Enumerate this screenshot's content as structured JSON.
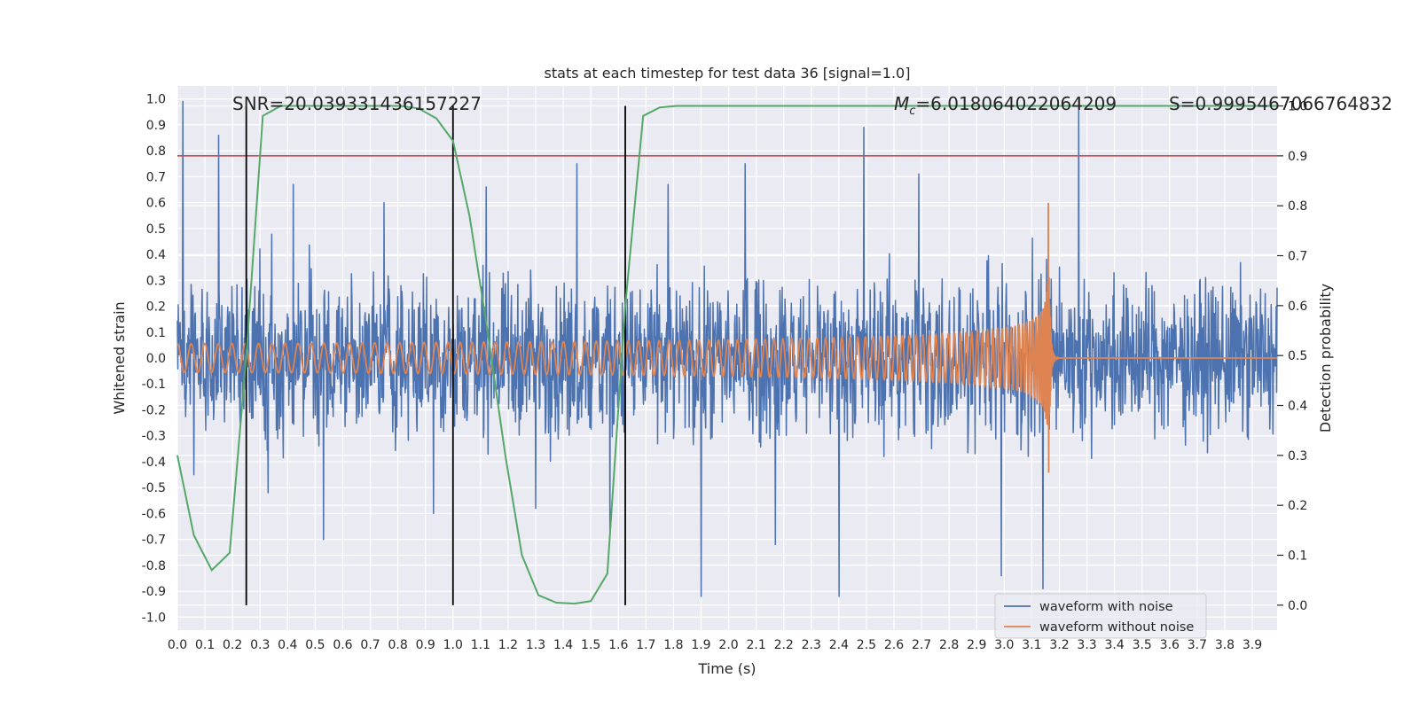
{
  "chart_data": {
    "type": "line",
    "title": "stats at each timestep for test data 36 [signal=1.0]",
    "xlabel": "Time (s)",
    "ylabel": "Whitened strain",
    "y2label": "Detection probability",
    "xlim": [
      0.0,
      3.99
    ],
    "ylim": [
      -1.05,
      1.05
    ],
    "y2lim": [
      -0.05,
      1.04
    ],
    "x_ticks": [
      0.0,
      0.1,
      0.2,
      0.3,
      0.4,
      0.5,
      0.6,
      0.7,
      0.8,
      0.9,
      1.0,
      1.1,
      1.2,
      1.3,
      1.4,
      1.5,
      1.6,
      1.7,
      1.8,
      1.9,
      2.0,
      2.1,
      2.2,
      2.3,
      2.4,
      2.5,
      2.6,
      2.7,
      2.8,
      2.9,
      3.0,
      3.1,
      3.2,
      3.3,
      3.4,
      3.5,
      3.6,
      3.7,
      3.8,
      3.9
    ],
    "x_tick_labels": [
      "0.0",
      "0.1",
      "0.2",
      "0.3",
      "0.4",
      "0.5",
      "0.6",
      "0.7",
      "0.8",
      "0.9",
      "1.0",
      "1.1",
      "1.2",
      "1.3",
      "1.4",
      "1.5",
      "1.6",
      "1.7",
      "1.8",
      "1.9",
      "2.0",
      "2.1",
      "2.2",
      "2.3",
      "2.4",
      "2.5",
      "2.6",
      "2.7",
      "2.8",
      "2.9",
      "3.0",
      "3.1",
      "3.2",
      "3.3",
      "3.4",
      "3.5",
      "3.6",
      "3.7",
      "3.8",
      "3.9"
    ],
    "y_ticks": [
      1.0,
      0.9,
      0.8,
      0.7,
      0.6,
      0.5,
      0.4,
      0.3,
      0.2,
      0.1,
      0.0,
      -0.1,
      -0.2,
      -0.3,
      -0.4,
      -0.5,
      -0.6,
      -0.7,
      -0.8,
      -0.9,
      -1.0
    ],
    "y_tick_labels": [
      "1.0",
      "0.9",
      "0.8",
      "0.7",
      "0.6",
      "0.5",
      "0.4",
      "0.3",
      "0.2",
      "0.1",
      "0.0",
      "-0.1",
      "-0.2",
      "-0.3",
      "-0.4",
      "-0.5",
      "-0.6",
      "-0.7",
      "-0.8",
      "-0.9",
      "-1.0"
    ],
    "y2_ticks": [
      1.0,
      0.9,
      0.8,
      0.7,
      0.6,
      0.5,
      0.4,
      0.3,
      0.2,
      0.1,
      0.0
    ],
    "y2_tick_labels": [
      "1.0",
      "0.9",
      "0.8",
      "0.7",
      "0.6",
      "0.5",
      "0.4",
      "0.3",
      "0.2",
      "0.1",
      "0.0"
    ],
    "grid": true,
    "legend_position": "bottom-right",
    "annotations": {
      "snr": "SNR=20.039331436157227",
      "mc_symbol": "M",
      "mc_subscript": "c",
      "mc_value": "=6.018064022064209",
      "s": "S=0.9995467066764832"
    },
    "threshold_y2": 0.9,
    "vertical_lines_x": [
      0.25,
      1.0,
      1.625
    ],
    "vertical_lines_y2_range": [
      0.0,
      1.0
    ],
    "series": [
      {
        "name": "waveform with noise",
        "color": "#4c72b0",
        "kind": "noise",
        "peak_x": [
          0.02,
          0.06,
          0.15,
          0.33,
          0.42,
          0.53,
          0.75,
          0.93,
          1.12,
          1.3,
          1.45,
          1.57,
          1.78,
          1.9,
          2.06,
          2.17,
          2.4,
          2.49,
          2.69,
          2.99,
          3.14,
          3.27
        ],
        "peak_y": [
          0.99,
          -0.45,
          0.86,
          -0.52,
          0.67,
          -0.7,
          0.6,
          -0.6,
          0.66,
          -0.58,
          0.75,
          -0.67,
          0.67,
          -0.92,
          0.75,
          -0.72,
          -0.92,
          0.89,
          0.71,
          -0.84,
          -0.89,
          1.0
        ]
      },
      {
        "name": "waveform without noise",
        "color": "#dd8452",
        "kind": "chirp",
        "amplitude_start": 0.055,
        "amplitude_peak": 0.62,
        "merger_x": 3.16,
        "frequency_start_hz": 20
      },
      {
        "name": "detection probability",
        "color": "#55a868",
        "axis": "y2",
        "x": [
          0.0,
          0.06,
          0.125,
          0.19,
          0.25,
          0.31,
          0.375,
          0.44,
          0.5,
          0.56,
          0.625,
          0.69,
          0.75,
          0.81,
          0.875,
          0.94,
          1.0,
          1.06,
          1.125,
          1.19,
          1.25,
          1.31,
          1.375,
          1.44,
          1.5,
          1.56,
          1.625,
          1.69,
          1.75,
          1.81,
          2.0,
          3.0,
          3.99
        ],
        "y": [
          0.3,
          0.14,
          0.07,
          0.105,
          0.5,
          0.98,
          1.0,
          1.0,
          1.0,
          1.0,
          1.0,
          1.0,
          1.0,
          1.0,
          0.995,
          0.975,
          0.93,
          0.78,
          0.55,
          0.3,
          0.1,
          0.02,
          0.005,
          0.003,
          0.008,
          0.063,
          0.6,
          0.98,
          0.997,
          1.0,
          1.0,
          1.0,
          1.0
        ]
      }
    ],
    "threshold_color": "#c44e52",
    "vline_color": "#000000"
  }
}
